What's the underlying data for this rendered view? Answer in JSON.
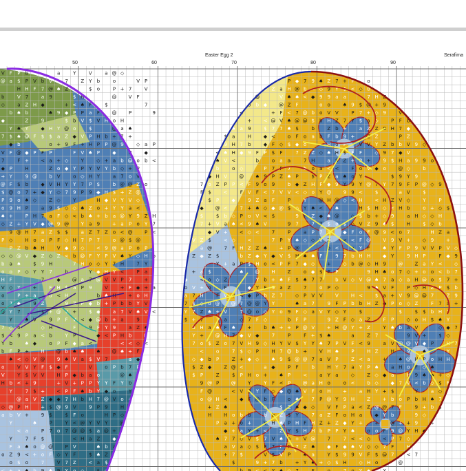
{
  "header": {
    "title": "Easter Egg 2",
    "designer": "Serafima"
  },
  "ruler": {
    "numbers": [
      "50",
      "60",
      "70",
      "80",
      "90"
    ]
  },
  "palette": {
    "yellow": "#e8b21a",
    "blue": "#4f7fb5",
    "light_blue": "#a9c3e0",
    "red": "#e6402b",
    "green": "#7d9a4a",
    "light_green": "#b8c97a",
    "teal": "#5a9aa8",
    "dark_teal": "#2f6d85",
    "purple_outline": "#8a2be2",
    "navy_outline": "#1a2aa8",
    "maroon_outline": "#8b1010",
    "yellow_backstitch": "#f4f04a",
    "dark_red_backstitch": "#b01e1e",
    "grid_line": "#b9b9b9",
    "grid_major": "#6d6d6d"
  },
  "symbols": [
    "Y",
    "P",
    "V",
    "7",
    "H",
    "<",
    "F",
    "b",
    "Z",
    "@",
    "♠",
    "◇",
    "◆",
    "$",
    "a",
    "o",
    "9",
    "+"
  ]
}
